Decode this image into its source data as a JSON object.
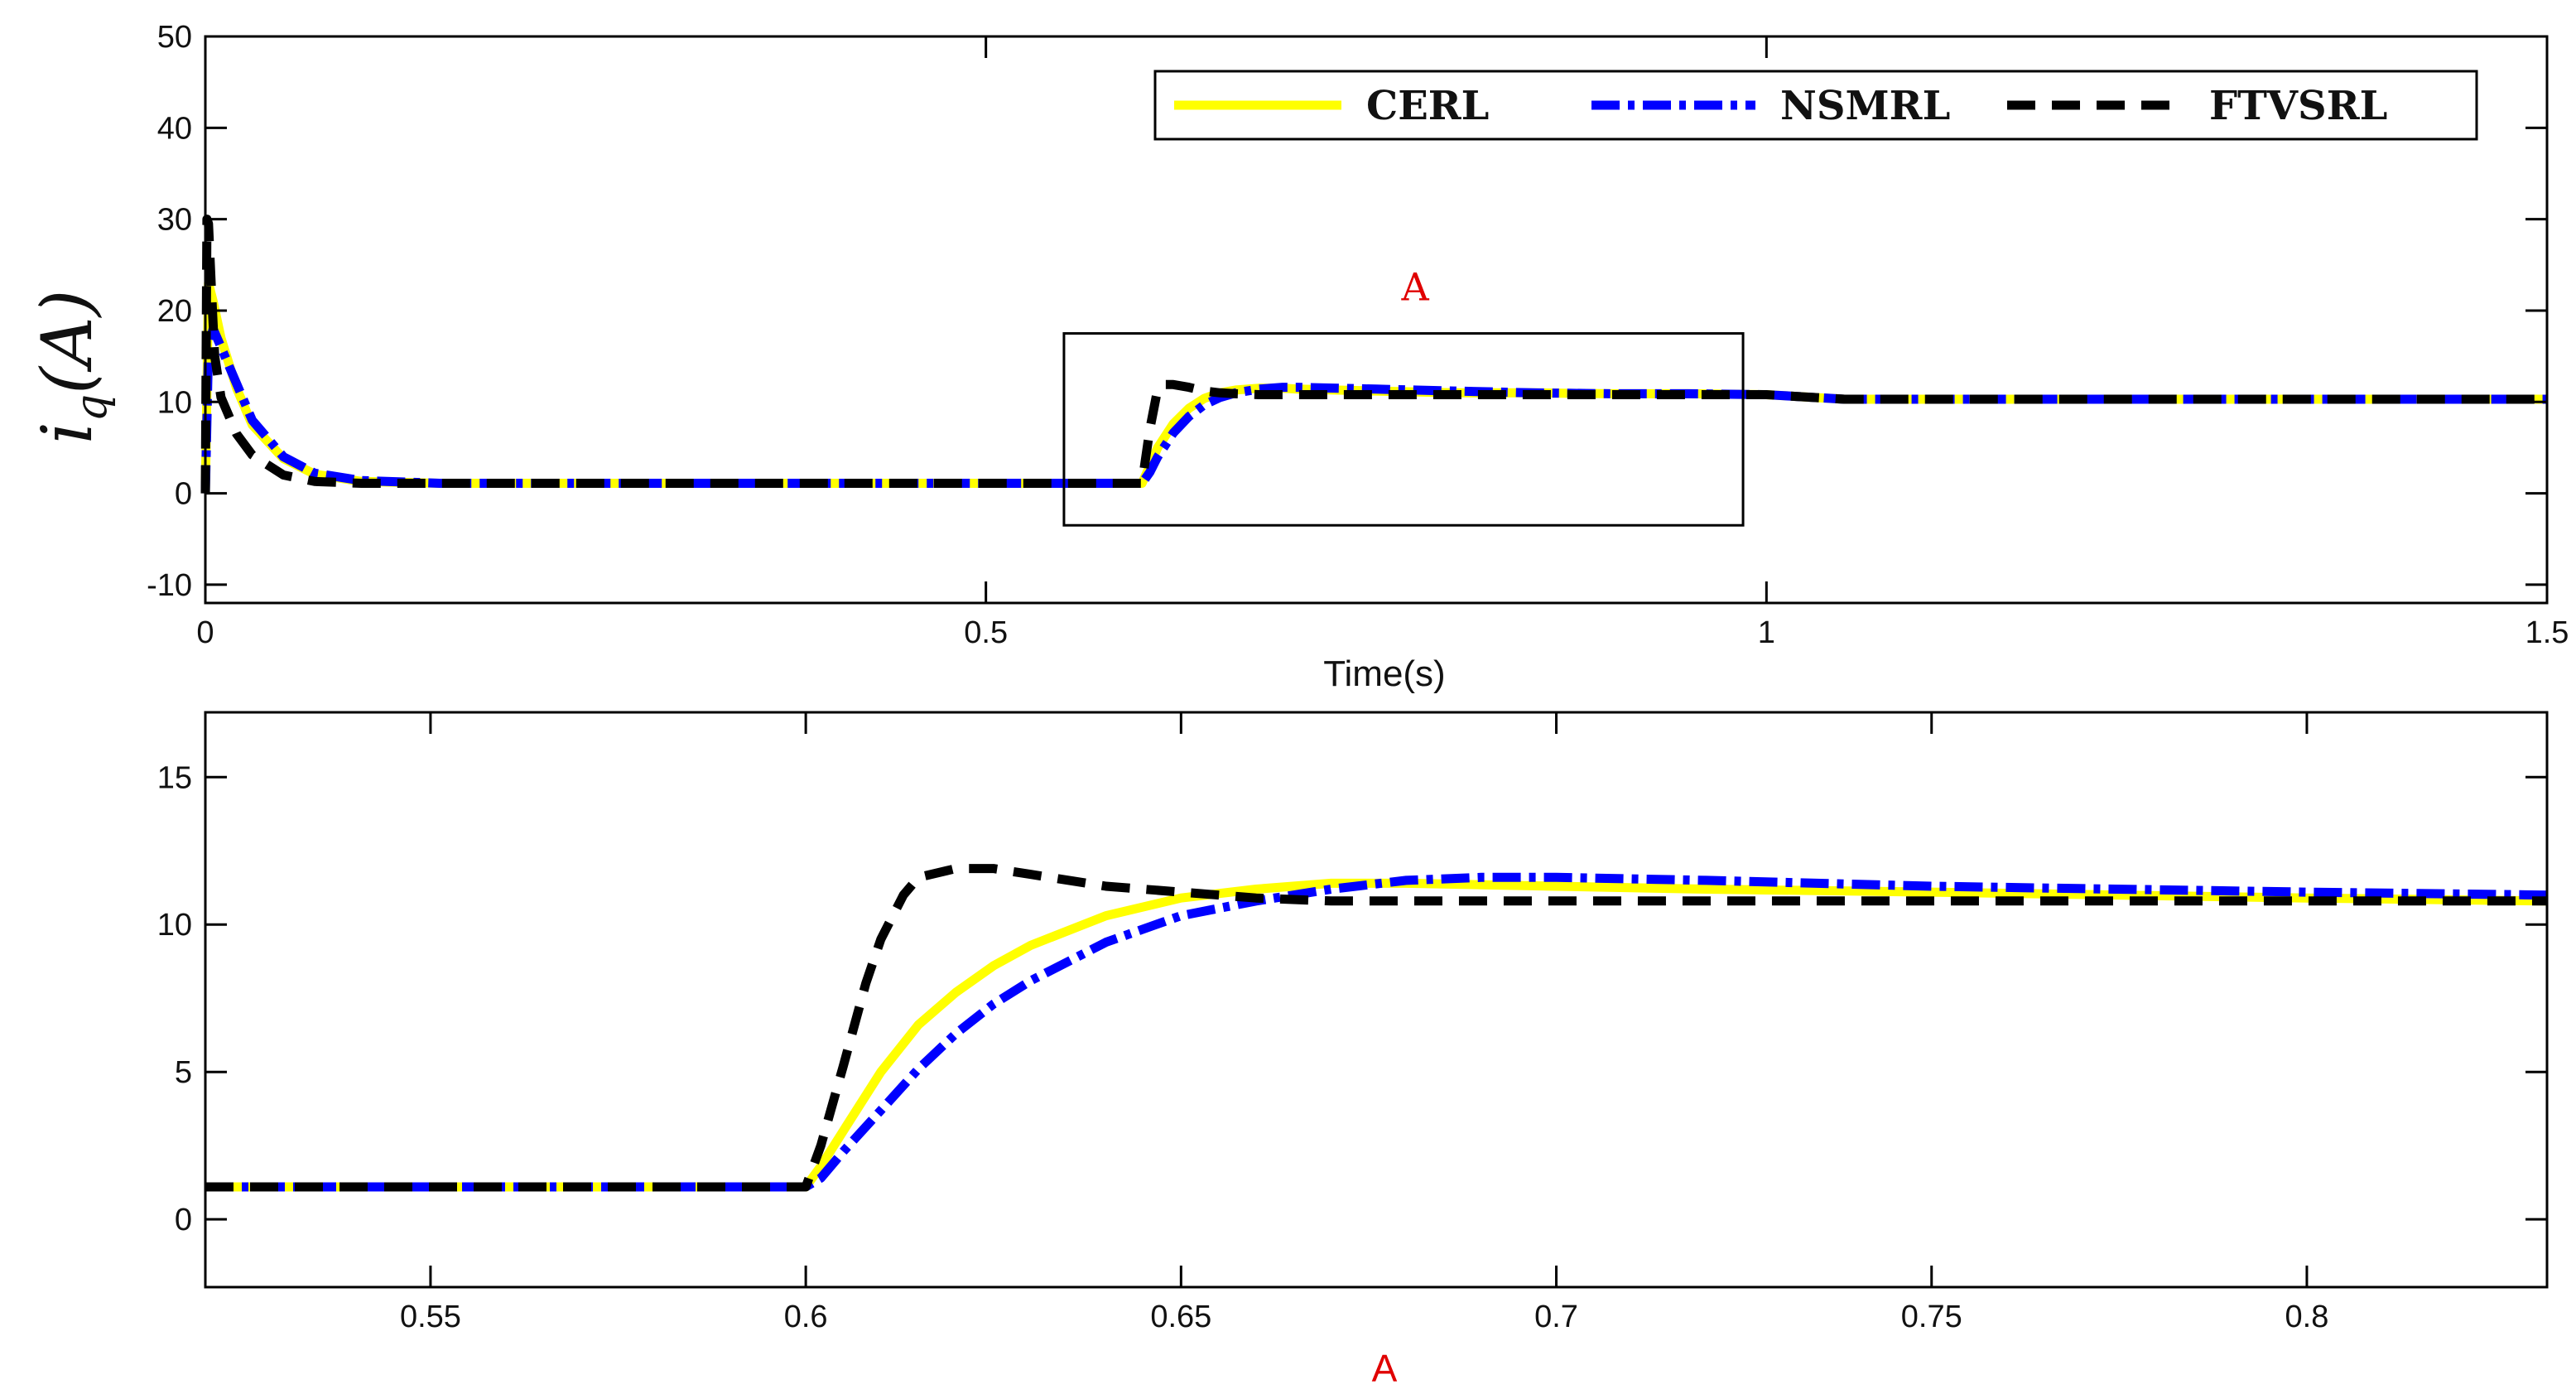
{
  "chart_data": [
    {
      "type": "line",
      "ylabel": "i_q(A)",
      "xlabel": "Time(s)",
      "xlim": [
        0,
        1.5
      ],
      "ylim": [
        -12,
        50
      ],
      "xticks": [
        0,
        0.5,
        1,
        1.5
      ],
      "xtick_labels": [
        "0",
        "0.5",
        "1",
        "1.5"
      ],
      "yticks": [
        -10,
        0,
        10,
        20,
        30,
        40,
        50
      ],
      "ytick_labels": [
        "-10",
        "0",
        "10",
        "20",
        "30",
        "40",
        "50"
      ],
      "grid": false,
      "legend": {
        "placement": "top-right",
        "orientation": "horizontal",
        "entries": [
          "CERL",
          "NSMRL",
          "FTVSRL"
        ]
      },
      "annotation": {
        "text": "A",
        "zoom_box": {
          "x": [
            0.55,
            0.985
          ],
          "y": [
            -3.5,
            17.5
          ]
        }
      },
      "series": [
        {
          "name": "CERL",
          "x": [
            0,
            0.002,
            0.005,
            0.01,
            0.02,
            0.03,
            0.05,
            0.07,
            0.1,
            0.15,
            0.2,
            0.3,
            0.4,
            0.5,
            0.6,
            0.605,
            0.61,
            0.62,
            0.63,
            0.64,
            0.65,
            0.66,
            0.675,
            0.69,
            0.7,
            0.75,
            0.8,
            0.85,
            0.9,
            0.95,
            1.0,
            1.02,
            1.05,
            1.1,
            1.2,
            1.3,
            1.4,
            1.5
          ],
          "values": [
            0,
            23,
            21,
            17,
            11.5,
            7.5,
            3.8,
            2.1,
            1.3,
            1.1,
            1.1,
            1.1,
            1.1,
            1.1,
            1.1,
            3,
            5,
            7.6,
            9.3,
            10.4,
            11,
            11.3,
            11.5,
            11.5,
            11.4,
            11.2,
            11,
            11,
            10.9,
            10.9,
            10.8,
            10.6,
            10.3,
            10.3,
            10.3,
            10.3,
            10.3,
            10.3
          ]
        },
        {
          "name": "NSMRL",
          "x": [
            0,
            0.002,
            0.005,
            0.01,
            0.02,
            0.03,
            0.05,
            0.07,
            0.1,
            0.15,
            0.2,
            0.3,
            0.4,
            0.5,
            0.6,
            0.605,
            0.61,
            0.62,
            0.63,
            0.64,
            0.65,
            0.66,
            0.675,
            0.69,
            0.7,
            0.75,
            0.8,
            0.85,
            0.9,
            0.95,
            1.0,
            1.02,
            1.05,
            1.1,
            1.2,
            1.3,
            1.4,
            1.5
          ],
          "values": [
            0,
            16,
            18,
            16,
            12,
            8,
            4,
            2.2,
            1.4,
            1.1,
            1.1,
            1.1,
            1.1,
            1.1,
            1.1,
            2.3,
            4,
            6.6,
            8.4,
            9.7,
            10.5,
            11,
            11.4,
            11.6,
            11.6,
            11.4,
            11.2,
            11,
            10.9,
            10.9,
            10.8,
            10.6,
            10.3,
            10.3,
            10.3,
            10.3,
            10.3,
            10.3
          ]
        },
        {
          "name": "FTVSRL",
          "x": [
            0,
            0.001,
            0.002,
            0.004,
            0.006,
            0.01,
            0.02,
            0.03,
            0.05,
            0.07,
            0.1,
            0.15,
            0.2,
            0.3,
            0.4,
            0.5,
            0.6,
            0.605,
            0.61,
            0.615,
            0.62,
            0.63,
            0.64,
            0.65,
            0.66,
            0.675,
            0.69,
            0.7,
            0.75,
            0.8,
            0.85,
            0.9,
            0.95,
            1.0,
            1.02,
            1.05,
            1.1,
            1.2,
            1.3,
            1.4,
            1.5
          ],
          "values": [
            0,
            30,
            29.5,
            22,
            15,
            10.5,
            6.5,
            4.2,
            2,
            1.3,
            1.1,
            1.1,
            1.1,
            1.1,
            1.1,
            1.1,
            1.1,
            7,
            11.4,
            11.9,
            11.9,
            11.6,
            11.2,
            11,
            10.9,
            10.8,
            10.8,
            10.8,
            10.8,
            10.8,
            10.8,
            10.8,
            10.8,
            10.8,
            10.6,
            10.3,
            10.3,
            10.3,
            10.3,
            10.3,
            10.3
          ]
        }
      ]
    },
    {
      "type": "line",
      "xlabel": "A",
      "xlim": [
        0.52,
        0.832
      ],
      "ylim": [
        -2.3,
        17.2
      ],
      "xticks": [
        0.55,
        0.6,
        0.65,
        0.7,
        0.75,
        0.8
      ],
      "xtick_labels": [
        "0.55",
        "0.6",
        "0.65",
        "0.7",
        "0.75",
        "0.8"
      ],
      "yticks": [
        0,
        5,
        10,
        15
      ],
      "ytick_labels": [
        "0",
        "5",
        "10",
        "15"
      ],
      "grid": false,
      "series": [
        {
          "name": "CERL",
          "x": [
            0.52,
            0.55,
            0.6,
            0.602,
            0.605,
            0.61,
            0.615,
            0.62,
            0.625,
            0.63,
            0.64,
            0.65,
            0.66,
            0.67,
            0.68,
            0.7,
            0.72,
            0.75,
            0.8,
            0.832
          ],
          "values": [
            1.1,
            1.1,
            1.1,
            1.8,
            3.0,
            5.0,
            6.6,
            7.7,
            8.6,
            9.3,
            10.3,
            10.9,
            11.2,
            11.4,
            11.4,
            11.3,
            11.2,
            11.1,
            10.9,
            10.8
          ]
        },
        {
          "name": "NSMRL",
          "x": [
            0.52,
            0.55,
            0.6,
            0.602,
            0.605,
            0.61,
            0.615,
            0.62,
            0.625,
            0.63,
            0.64,
            0.65,
            0.66,
            0.67,
            0.68,
            0.69,
            0.7,
            0.72,
            0.75,
            0.8,
            0.832
          ],
          "values": [
            1.1,
            1.1,
            1.1,
            1.4,
            2.3,
            3.7,
            5.1,
            6.3,
            7.3,
            8.1,
            9.4,
            10.3,
            10.8,
            11.2,
            11.5,
            11.6,
            11.6,
            11.5,
            11.3,
            11.1,
            11.0
          ]
        },
        {
          "name": "FTVSRL",
          "x": [
            0.52,
            0.55,
            0.6,
            0.602,
            0.605,
            0.608,
            0.61,
            0.613,
            0.615,
            0.62,
            0.625,
            0.63,
            0.64,
            0.65,
            0.66,
            0.67,
            0.7,
            0.75,
            0.8,
            0.832
          ],
          "values": [
            1.1,
            1.1,
            1.1,
            2.5,
            5.2,
            8.0,
            9.5,
            11.0,
            11.6,
            11.9,
            11.9,
            11.7,
            11.3,
            11.1,
            10.9,
            10.8,
            10.8,
            10.8,
            10.8,
            10.8
          ]
        }
      ]
    }
  ],
  "colors": {
    "CERL": "#ffff00",
    "NSMRL": "#0000ff",
    "FTVSRL": "#000000",
    "axes": "#000000",
    "annotation": "#e00000"
  }
}
